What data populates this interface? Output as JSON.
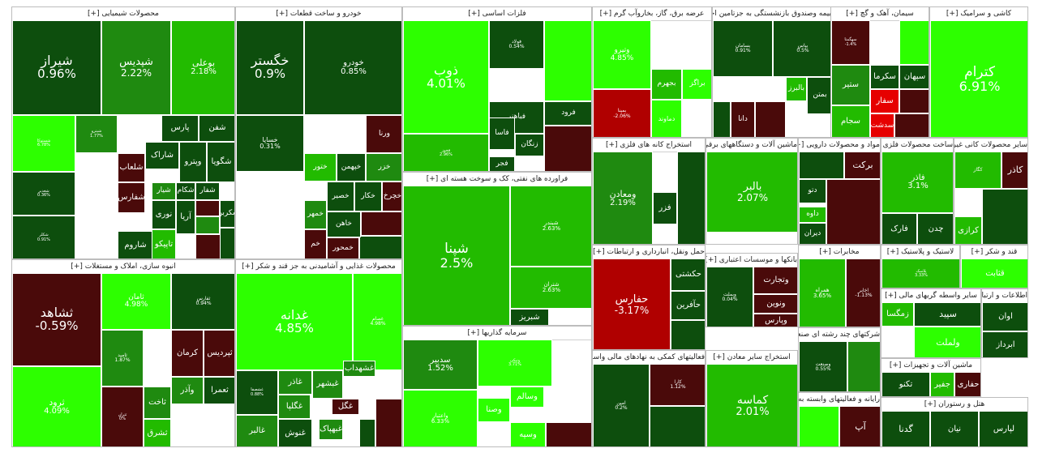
{
  "chart_data": {
    "type": "treemap",
    "title": "",
    "value_unit": "%",
    "color_scale": {
      "strong_up": "#2dff00",
      "up": "#22bb00",
      "mild_up": "#1f8a10",
      "flat_up": "#0d4e0d",
      "flat_down": "#4a0a0a",
      "down": "#b00000",
      "strong_down": "#e60000"
    },
    "sectors": [
      {
        "title": "محصولات شیمیایی [+]",
        "stocks": [
          {
            "name": "شیراز",
            "change": 0.96
          },
          {
            "name": "شپدیس",
            "change": 2.22
          },
          {
            "name": "بوعلی",
            "change": 2.18
          },
          {
            "name": "شستوکا",
            "change": 6.78
          },
          {
            "name": "شپترو",
            "change": 1.77
          },
          {
            "name": "شغدیر",
            "change": 0.36
          },
          {
            "name": "شکلر",
            "change": 0.91
          },
          {
            "name": "پارس",
            "change": null
          },
          {
            "name": "شفن",
            "change": null
          },
          {
            "name": "شلعاب",
            "change": null
          },
          {
            "name": "شاراک",
            "change": null
          },
          {
            "name": "وپترو",
            "change": null
          },
          {
            "name": "شگویا",
            "change": null
          },
          {
            "name": "شفارس",
            "change": null
          },
          {
            "name": "نوری",
            "change": null
          },
          {
            "name": "آریا",
            "change": null
          },
          {
            "name": "شاروم",
            "change": null
          },
          {
            "name": "تاپیکو",
            "change": null
          },
          {
            "name": "شیار",
            "change": null
          },
          {
            "name": "شفار",
            "change": null
          },
          {
            "name": "شکام",
            "change": null
          },
          {
            "name": "شکربن",
            "change": null
          }
        ]
      },
      {
        "title": "خودرو و ساخت قطعات [+]",
        "stocks": [
          {
            "name": "خگستر",
            "change": 0.9
          },
          {
            "name": "خودرو",
            "change": 0.85
          },
          {
            "name": "خساپا",
            "change": 0.31
          },
          {
            "name": "ورنا",
            "change": null
          },
          {
            "name": "خزر",
            "change": null
          },
          {
            "name": "خپهمن",
            "change": null
          },
          {
            "name": "ختور",
            "change": null
          },
          {
            "name": "خکار",
            "change": null
          },
          {
            "name": "خصیر",
            "change": null
          },
          {
            "name": "خمهر",
            "change": null
          },
          {
            "name": "خاهن",
            "change": null
          },
          {
            "name": "خمحور",
            "change": null
          },
          {
            "name": "خم",
            "change": null
          },
          {
            "name": "خچرخ",
            "change": null
          }
        ]
      },
      {
        "title": "فلزات اساسی [+]",
        "stocks": [
          {
            "name": "ذوب",
            "change": 4.01
          },
          {
            "name": "فولاد",
            "change": 0.54
          },
          {
            "name": "فخوز",
            "change": 2.96
          },
          {
            "name": "فباهنر",
            "change": null
          },
          {
            "name": "فرود",
            "change": null
          },
          {
            "name": "زنگان",
            "change": null
          },
          {
            "name": "فجر",
            "change": null
          },
          {
            "name": "فاسا",
            "change": null
          }
        ]
      },
      {
        "title": "عرضه برق، گاز، بخاروآب گرم [+]",
        "stocks": [
          {
            "name": "وتيرو",
            "change": 4.85
          },
          {
            "name": "بمپنا",
            "change": -2.06
          },
          {
            "name": "بجهرم",
            "change": null
          },
          {
            "name": "براگز",
            "change": null
          },
          {
            "name": "دماوند",
            "change": null
          }
        ]
      },
      {
        "title": "بیمه وصندوق بازنشستگی به جزتامین اجتماعی [+]",
        "stocks": [
          {
            "name": "بپاس",
            "change": 0.5
          },
          {
            "name": "بالبرز",
            "change": null
          },
          {
            "name": "دانا",
            "change": null
          },
          {
            "name": "بسامان",
            "change": 0.91
          },
          {
            "name": "بمتن",
            "change": null
          }
        ]
      },
      {
        "title": "سیمان، آهک و گچ [+]",
        "stocks": [
          {
            "name": "سهگمتا",
            "change": -1.4
          },
          {
            "name": "سکرما",
            "change": null
          },
          {
            "name": "سپهان",
            "change": null
          },
          {
            "name": "ستیر",
            "change": null
          },
          {
            "name": "سفار",
            "change": null
          },
          {
            "name": "سجام",
            "change": null
          },
          {
            "name": "سدشت",
            "change": null
          }
        ]
      },
      {
        "title": "کاشی و سرامیک [+]",
        "stocks": [
          {
            "name": "کترام",
            "change": 6.91
          }
        ]
      },
      {
        "title": "انبوه سازی، املاک و مستغلات [+]",
        "stocks": [
          {
            "name": "ثشاهد",
            "change": -0.59
          },
          {
            "name": "ثامان",
            "change": 4.98
          },
          {
            "name": "ثفارس",
            "change": 0.94
          },
          {
            "name": "ثرود",
            "change": 4.09
          },
          {
            "name": "ثامید",
            "change": 1.87
          },
          {
            "name": "کرمان",
            "change": null
          },
          {
            "name": "ثتران",
            "change": 0.0
          },
          {
            "name": "ثپردیس",
            "change": null
          },
          {
            "name": "ثاخت",
            "change": null
          },
          {
            "name": "وآذر",
            "change": null
          },
          {
            "name": "ثعمرا",
            "change": null
          },
          {
            "name": "ثشرق",
            "change": null
          }
        ]
      },
      {
        "title": "محصولات غذایی و آشامیدنی به جز قند و شکر [+]",
        "stocks": [
          {
            "name": "غدانه",
            "change": 4.85
          },
          {
            "name": "غصام",
            "change": 4.98
          },
          {
            "name": "غشصفا",
            "change": 0.88
          },
          {
            "name": "غاذر",
            "change": null
          },
          {
            "name": "غبشهر",
            "change": null
          },
          {
            "name": "غشهداب",
            "change": null
          },
          {
            "name": "غگل",
            "change": null
          },
          {
            "name": "غبهپاک",
            "change": null
          },
          {
            "name": "غالبر",
            "change": null
          },
          {
            "name": "غگلپا",
            "change": null
          },
          {
            "name": "غنوش",
            "change": null
          }
        ]
      },
      {
        "title": "فراورده های نفتی، کک و سوخت هسته ای [+]",
        "stocks": [
          {
            "name": "شپنا",
            "change": 2.5
          },
          {
            "name": "شبندر",
            "change": 2.63
          },
          {
            "name": "شتران",
            "change": 2.63
          },
          {
            "name": "شبریز",
            "change": null
          }
        ]
      },
      {
        "title": "سرمایه گذاریها [+]",
        "stocks": [
          {
            "name": "سدبیر",
            "change": 1.52
          },
          {
            "name": "واعتبار",
            "change": 6.33
          },
          {
            "name": "ونیکی",
            "change": 3.71
          },
          {
            "name": "وسالم",
            "change": null
          },
          {
            "name": "وصنا",
            "change": null
          },
          {
            "name": "وسپه",
            "change": null
          }
        ]
      },
      {
        "title": "استخراج کانه های فلزی [+]",
        "stocks": [
          {
            "name": "ومعادن",
            "change": 2.19
          },
          {
            "name": "فزر",
            "change": null
          }
        ]
      },
      {
        "title": "ماشین آلات و دستگاههای برقی [+]",
        "stocks": [
          {
            "name": "بالبر",
            "change": 2.07
          }
        ]
      },
      {
        "title": "مواد و محصولات دارویی [+]",
        "stocks": [
          {
            "name": "برکت",
            "change": null
          },
          {
            "name": "دتو",
            "change": null
          },
          {
            "name": "داوه",
            "change": null
          },
          {
            "name": "دیران",
            "change": null
          }
        ]
      },
      {
        "title": "ساخت محصولات فلزی [+]",
        "stocks": [
          {
            "name": "فاذر",
            "change": 3.1
          },
          {
            "name": "فارک",
            "change": null
          },
          {
            "name": "چدن",
            "change": null
          }
        ]
      },
      {
        "title": "سایر محصولات کانی غیرفلزی [+]",
        "stocks": [
          {
            "name": "کگاز",
            "change": null
          },
          {
            "name": "کاذر",
            "change": null
          },
          {
            "name": "کرازی",
            "change": null
          }
        ]
      },
      {
        "title": "حمل ونقل، انبارداری و ارتباطات [+]",
        "stocks": [
          {
            "name": "حفارس",
            "change": -3.17
          },
          {
            "name": "حکشتی",
            "change": null
          },
          {
            "name": "حآفرین",
            "change": null
          }
        ]
      },
      {
        "title": "بانکها و موسسات اعتباری [+]",
        "stocks": [
          {
            "name": "وبملت",
            "change": 0.04
          },
          {
            "name": "وتجارت",
            "change": null
          },
          {
            "name": "ونوین",
            "change": null
          },
          {
            "name": "وپارس",
            "change": null
          }
        ]
      },
      {
        "title": "مخابرات [+]",
        "stocks": [
          {
            "name": "همراه",
            "change": 3.65
          },
          {
            "name": "اخابر",
            "change": -1.13
          }
        ]
      },
      {
        "title": "لاستیک و پلاستیک [+]",
        "stocks": [
          {
            "name": "پلاسک",
            "change": 3.33
          }
        ]
      },
      {
        "title": "قند و شکر [+]",
        "stocks": [
          {
            "name": "قثابت",
            "change": null
          }
        ]
      },
      {
        "title": "فعالیتهای کمکی به نهادهای مالی واسط [+]",
        "stocks": [
          {
            "name": "امین",
            "change": 0.2
          },
          {
            "name": "کارا",
            "change": 1.12
          }
        ]
      },
      {
        "title": "استخراج سایر معادن [+]",
        "stocks": [
          {
            "name": "کماسه",
            "change": 2.01
          }
        ]
      },
      {
        "title": "شرکتهای چند رشته ای صنعتی [+]",
        "stocks": [
          {
            "name": "وصنعت",
            "change": 0.55
          }
        ]
      },
      {
        "title": "رایانه و فعالیتهای وابسته به آن [+]",
        "stocks": [
          {
            "name": "آپ",
            "change": null
          }
        ]
      },
      {
        "title": "سایر واسطه گریهای مالی [+]",
        "stocks": [
          {
            "name": "سپید",
            "change": null
          },
          {
            "name": "زمگسا",
            "change": null
          },
          {
            "name": "ولملت",
            "change": null
          }
        ]
      },
      {
        "title": "اطلاعات و ارتباطات [+]",
        "stocks": [
          {
            "name": "اوان",
            "change": null
          },
          {
            "name": "ابرداز",
            "change": null
          }
        ]
      },
      {
        "title": "ماشین آلات و تجهیزات [+]",
        "stocks": [
          {
            "name": "تکنو",
            "change": null
          },
          {
            "name": "حفاری",
            "change": null
          },
          {
            "name": "جفیر",
            "change": null
          }
        ]
      },
      {
        "title": "هتل و رستوران [+]",
        "stocks": [
          {
            "name": "گدنا",
            "change": null
          },
          {
            "name": "نیان",
            "change": null
          },
          {
            "name": "لپارس",
            "change": null
          }
        ]
      }
    ]
  }
}
